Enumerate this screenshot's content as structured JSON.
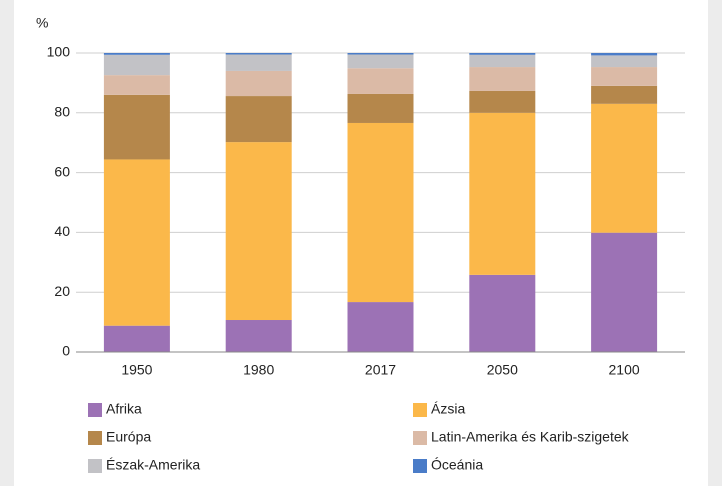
{
  "chart_data": {
    "type": "stacked_bar",
    "y_label": "%",
    "categories": [
      "1950",
      "1980",
      "2017",
      "2050",
      "2100"
    ],
    "series": [
      {
        "name": "Afrika",
        "color": "#9c72b5",
        "values": [
          8.8,
          10.7,
          16.7,
          25.8,
          39.9
        ]
      },
      {
        "name": "Ázsia",
        "color": "#fbb84a",
        "values": [
          55.6,
          59.5,
          59.9,
          54.2,
          43.1
        ]
      },
      {
        "name": "Európa",
        "color": "#b5874b",
        "values": [
          21.6,
          15.4,
          9.7,
          7.3,
          6.0
        ]
      },
      {
        "name": "Latin-Amerika és Karib-szigetek",
        "color": "#dbbaa6",
        "values": [
          6.6,
          8.4,
          8.6,
          8.0,
          6.3
        ]
      },
      {
        "name": "Észak-Amerika",
        "color": "#c2c2c6",
        "values": [
          6.8,
          5.5,
          4.6,
          4.1,
          3.9
        ]
      },
      {
        "name": "Óceánia",
        "color": "#4a7cc8",
        "values": [
          0.6,
          0.5,
          0.5,
          0.6,
          0.8
        ]
      }
    ],
    "ylim": [
      0,
      100
    ],
    "yticks": [
      0,
      20,
      40,
      60,
      80,
      100
    ],
    "grid": true
  }
}
